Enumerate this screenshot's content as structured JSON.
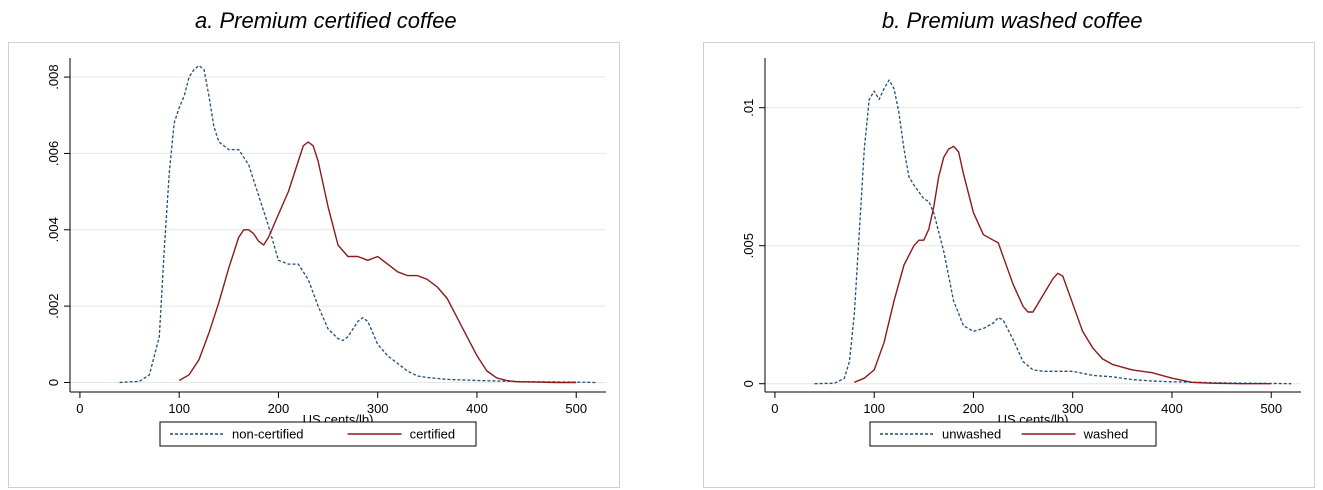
{
  "chart_data": [
    {
      "type": "line",
      "title": "a.    Premium certified coffee",
      "xlabel": "US cents/lb)",
      "ylabel": "",
      "xlim": [
        -10,
        530
      ],
      "ylim": [
        -0.00025,
        0.0085
      ],
      "xticks": [
        "0",
        "100",
        "200",
        "300",
        "400",
        "500"
      ],
      "xtick_values": [
        0,
        100,
        200,
        300,
        400,
        500
      ],
      "yticks": [
        "0",
        ".002",
        ".004",
        ".006",
        ".008"
      ],
      "ytick_values": [
        0,
        0.002,
        0.004,
        0.006,
        0.008
      ],
      "grid": true,
      "legend": "bottom-center",
      "series": [
        {
          "name": "non-certified",
          "style": "dashed",
          "color": "#1f4e79",
          "x": [
            40,
            60,
            70,
            80,
            85,
            90,
            95,
            100,
            105,
            110,
            115,
            120,
            125,
            130,
            135,
            140,
            150,
            160,
            170,
            180,
            190,
            200,
            210,
            220,
            230,
            240,
            250,
            260,
            265,
            270,
            280,
            285,
            290,
            300,
            310,
            320,
            330,
            340,
            350,
            370,
            400,
            450,
            500,
            520
          ],
          "y": [
            0.0,
            3e-05,
            0.0002,
            0.0012,
            0.0035,
            0.0055,
            0.0068,
            0.0072,
            0.0075,
            0.008,
            0.0082,
            0.0083,
            0.0082,
            0.0075,
            0.0067,
            0.0063,
            0.0061,
            0.0061,
            0.0057,
            0.0049,
            0.0041,
            0.0032,
            0.0031,
            0.0031,
            0.0027,
            0.002,
            0.0014,
            0.00115,
            0.0011,
            0.0012,
            0.0016,
            0.0017,
            0.0016,
            0.001,
            0.0007,
            0.0005,
            0.0003,
            0.00017,
            0.00013,
            8e-05,
            5e-05,
            2e-05,
            1e-05,
            0.0
          ]
        },
        {
          "name": "certified",
          "style": "solid",
          "color": "#8b1a1a",
          "x": [
            100,
            110,
            120,
            130,
            140,
            150,
            160,
            165,
            170,
            175,
            180,
            185,
            190,
            200,
            210,
            220,
            225,
            230,
            235,
            240,
            250,
            260,
            270,
            280,
            290,
            300,
            310,
            320,
            330,
            340,
            350,
            360,
            370,
            380,
            390,
            400,
            410,
            420,
            430,
            440,
            460,
            480,
            500
          ],
          "y": [
            5e-05,
            0.0002,
            0.0006,
            0.0013,
            0.0021,
            0.003,
            0.0038,
            0.004,
            0.004,
            0.0039,
            0.0037,
            0.0036,
            0.0038,
            0.0044,
            0.005,
            0.0058,
            0.0062,
            0.0063,
            0.0062,
            0.0058,
            0.0046,
            0.0036,
            0.0033,
            0.0033,
            0.0032,
            0.0033,
            0.0031,
            0.0029,
            0.0028,
            0.0028,
            0.0027,
            0.0025,
            0.0022,
            0.0017,
            0.0012,
            0.0007,
            0.0003,
            0.00012,
            5e-05,
            2e-05,
            1e-05,
            0.0,
            0.0
          ]
        }
      ]
    },
    {
      "type": "line",
      "title": "b.    Premium washed coffee",
      "xlabel": "US cents/lb)",
      "ylabel": "",
      "xlim": [
        -10,
        530
      ],
      "ylim": [
        -0.0003,
        0.0118
      ],
      "xticks": [
        "0",
        "100",
        "200",
        "300",
        "400",
        "500"
      ],
      "xtick_values": [
        0,
        100,
        200,
        300,
        400,
        500
      ],
      "yticks": [
        "0",
        ".005",
        ".01"
      ],
      "ytick_values": [
        0,
        0.005,
        0.01
      ],
      "grid": true,
      "legend": "bottom-center",
      "series": [
        {
          "name": "unwashed",
          "style": "dashed",
          "color": "#1f4e79",
          "x": [
            40,
            60,
            70,
            75,
            80,
            85,
            90,
            95,
            100,
            105,
            110,
            115,
            120,
            125,
            130,
            135,
            140,
            150,
            155,
            160,
            170,
            180,
            190,
            200,
            210,
            220,
            225,
            230,
            240,
            250,
            260,
            270,
            300,
            320,
            340,
            360,
            380,
            400,
            450,
            500,
            520
          ],
          "y": [
            0.0,
            2e-05,
            0.0002,
            0.0008,
            0.0025,
            0.0055,
            0.0085,
            0.0103,
            0.0106,
            0.0103,
            0.0107,
            0.011,
            0.0107,
            0.0098,
            0.0085,
            0.0075,
            0.0072,
            0.0067,
            0.0066,
            0.0062,
            0.0048,
            0.003,
            0.0021,
            0.0019,
            0.002,
            0.0022,
            0.0024,
            0.0023,
            0.0016,
            0.0008,
            0.0005,
            0.00045,
            0.00045,
            0.0003,
            0.00025,
            0.00015,
            0.0001,
            7e-05,
            3e-05,
            1e-05,
            0.0
          ]
        },
        {
          "name": "washed",
          "style": "solid",
          "color": "#8b1a1a",
          "x": [
            80,
            90,
            100,
            110,
            120,
            130,
            140,
            145,
            150,
            155,
            160,
            165,
            170,
            175,
            180,
            185,
            190,
            200,
            210,
            220,
            225,
            230,
            240,
            250,
            255,
            260,
            270,
            280,
            285,
            290,
            300,
            310,
            320,
            330,
            340,
            360,
            380,
            390,
            400,
            420,
            440,
            470,
            500
          ],
          "y": [
            5e-05,
            0.0002,
            0.0005,
            0.0015,
            0.003,
            0.0043,
            0.005,
            0.0052,
            0.0052,
            0.0056,
            0.0064,
            0.0075,
            0.0082,
            0.0085,
            0.0086,
            0.0084,
            0.0076,
            0.0062,
            0.0054,
            0.0052,
            0.0051,
            0.0046,
            0.0036,
            0.0028,
            0.0026,
            0.0026,
            0.0032,
            0.0038,
            0.004,
            0.0039,
            0.0029,
            0.0019,
            0.0013,
            0.0009,
            0.0007,
            0.0005,
            0.0004,
            0.0003,
            0.0002,
            5e-05,
            2e-05,
            0.0,
            0.0
          ]
        }
      ]
    }
  ]
}
